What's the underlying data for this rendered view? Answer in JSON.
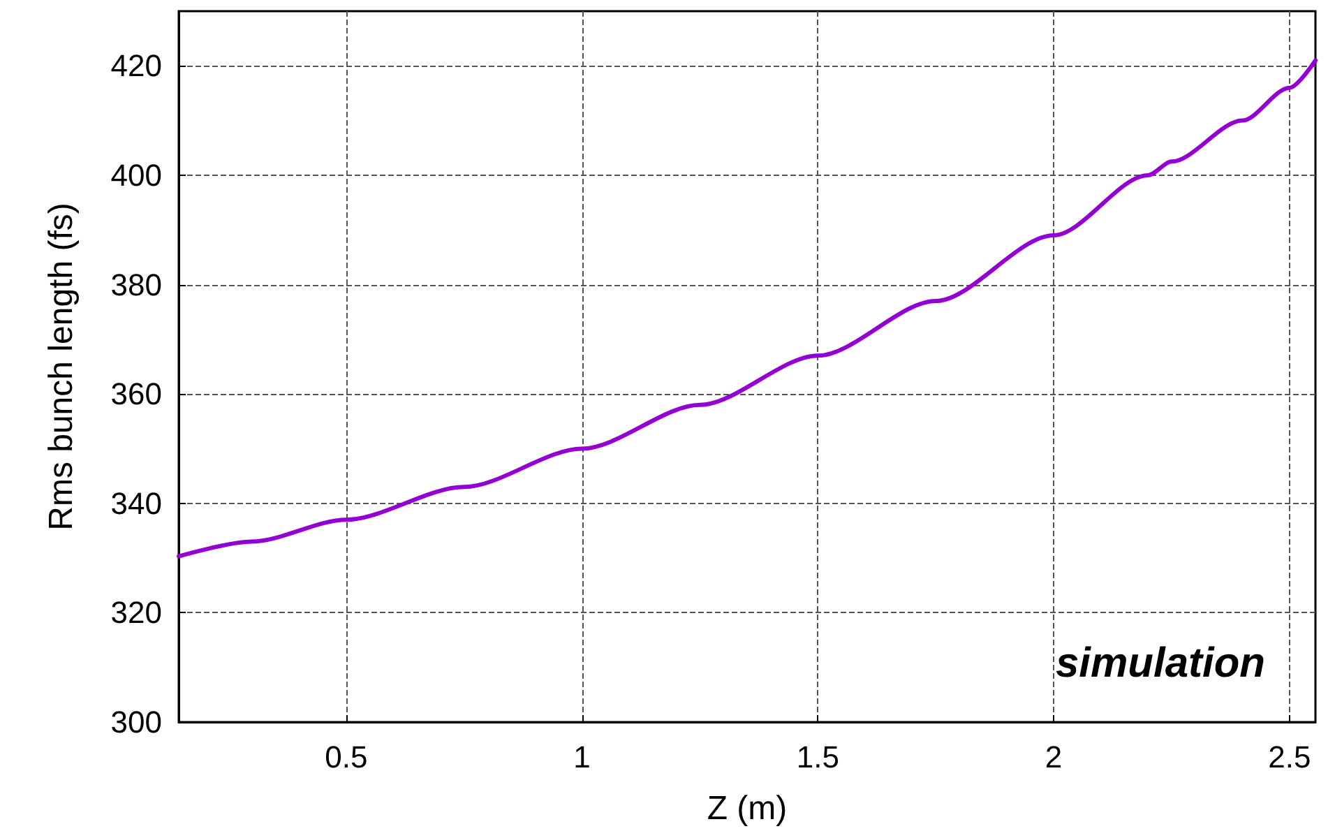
{
  "chart_data": {
    "type": "line",
    "xlabel": "Z (m)",
    "ylabel": "Rms bunch length (fs)",
    "x": [
      0.145,
      0.3,
      0.5,
      0.75,
      1.0,
      1.25,
      1.5,
      1.75,
      2.0,
      2.2,
      2.25,
      2.4,
      2.5,
      2.555
    ],
    "series": [
      {
        "color": "#9400d3",
        "values": [
          330.3,
          333,
          337,
          343,
          350,
          358,
          367,
          377,
          389,
          400,
          402.5,
          410,
          416,
          421
        ]
      }
    ],
    "xlim": [
      0.145,
      2.555
    ],
    "xticks": [
      0.5,
      1,
      1.5,
      2,
      2.5
    ],
    "ylim": [
      300,
      430
    ],
    "yticks": [
      300,
      320,
      340,
      360,
      380,
      400,
      420
    ],
    "grid": true,
    "marker": "none",
    "line_style": "solid",
    "annotations": [
      "simulation"
    ]
  }
}
